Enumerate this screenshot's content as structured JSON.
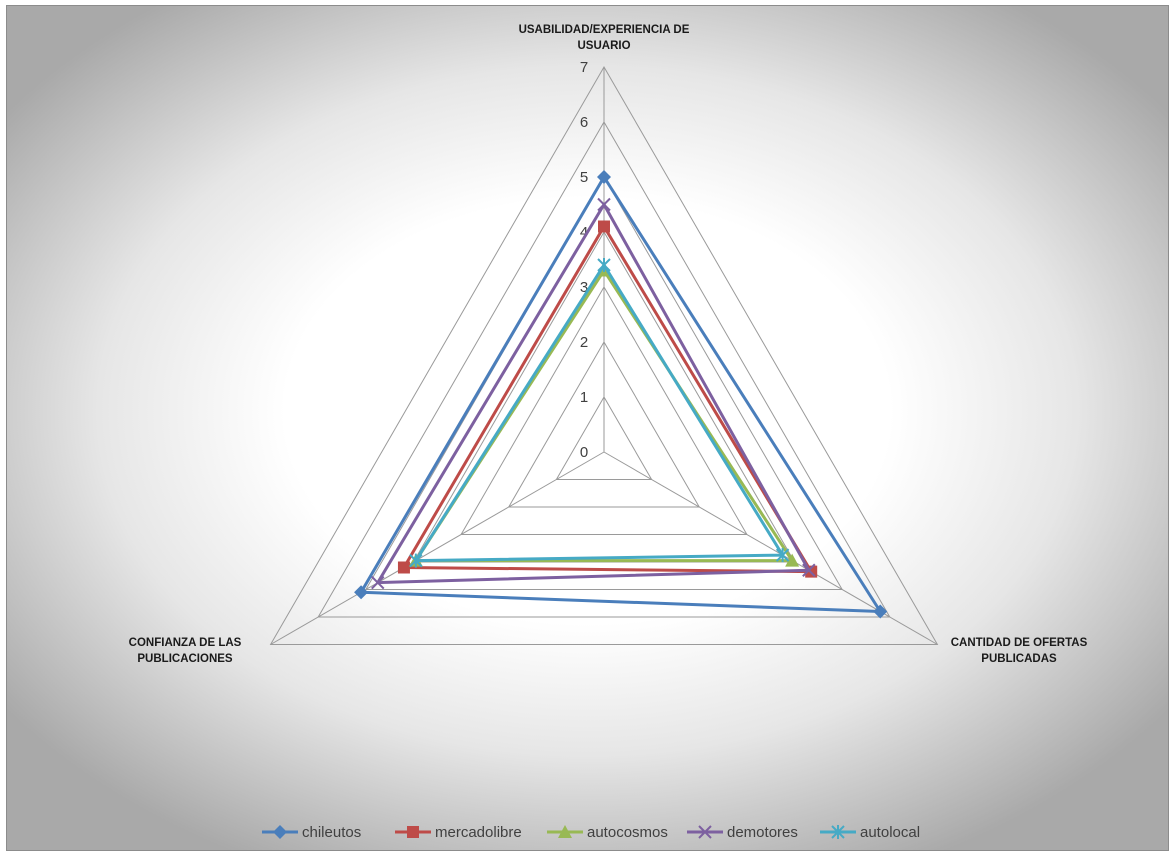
{
  "chart_data": {
    "type": "radar",
    "axes": [
      [
        "USABILIDAD/EXPERIENCIA DE",
        "USUARIO"
      ],
      [
        "CANTIDAD DE OFERTAS",
        "PUBLICADAS"
      ],
      [
        "CONFIANZA DE LAS",
        "PUBLICACIONES"
      ]
    ],
    "ticks": [
      "0",
      "1",
      "2",
      "3",
      "4",
      "5",
      "6",
      "7"
    ],
    "rmax": 7,
    "legend_position": "bottom",
    "series": [
      {
        "name": "chileutos",
        "color": "#4A7EBB",
        "marker": "diamond",
        "values": [
          5,
          5.8,
          5.1
        ]
      },
      {
        "name": "mercadolibre",
        "color": "#BE4B48",
        "marker": "square",
        "values": [
          4.1,
          4.35,
          4.2
        ]
      },
      {
        "name": "autocosmos",
        "color": "#98B954",
        "marker": "triangle",
        "values": [
          3.3,
          3.95,
          3.95
        ]
      },
      {
        "name": "demotores",
        "color": "#7D60A0",
        "marker": "x",
        "values": [
          4.5,
          4.3,
          4.75
        ]
      },
      {
        "name": "autolocal",
        "color": "#46AAC5",
        "marker": "star",
        "values": [
          3.4,
          3.75,
          3.95
        ]
      }
    ]
  }
}
